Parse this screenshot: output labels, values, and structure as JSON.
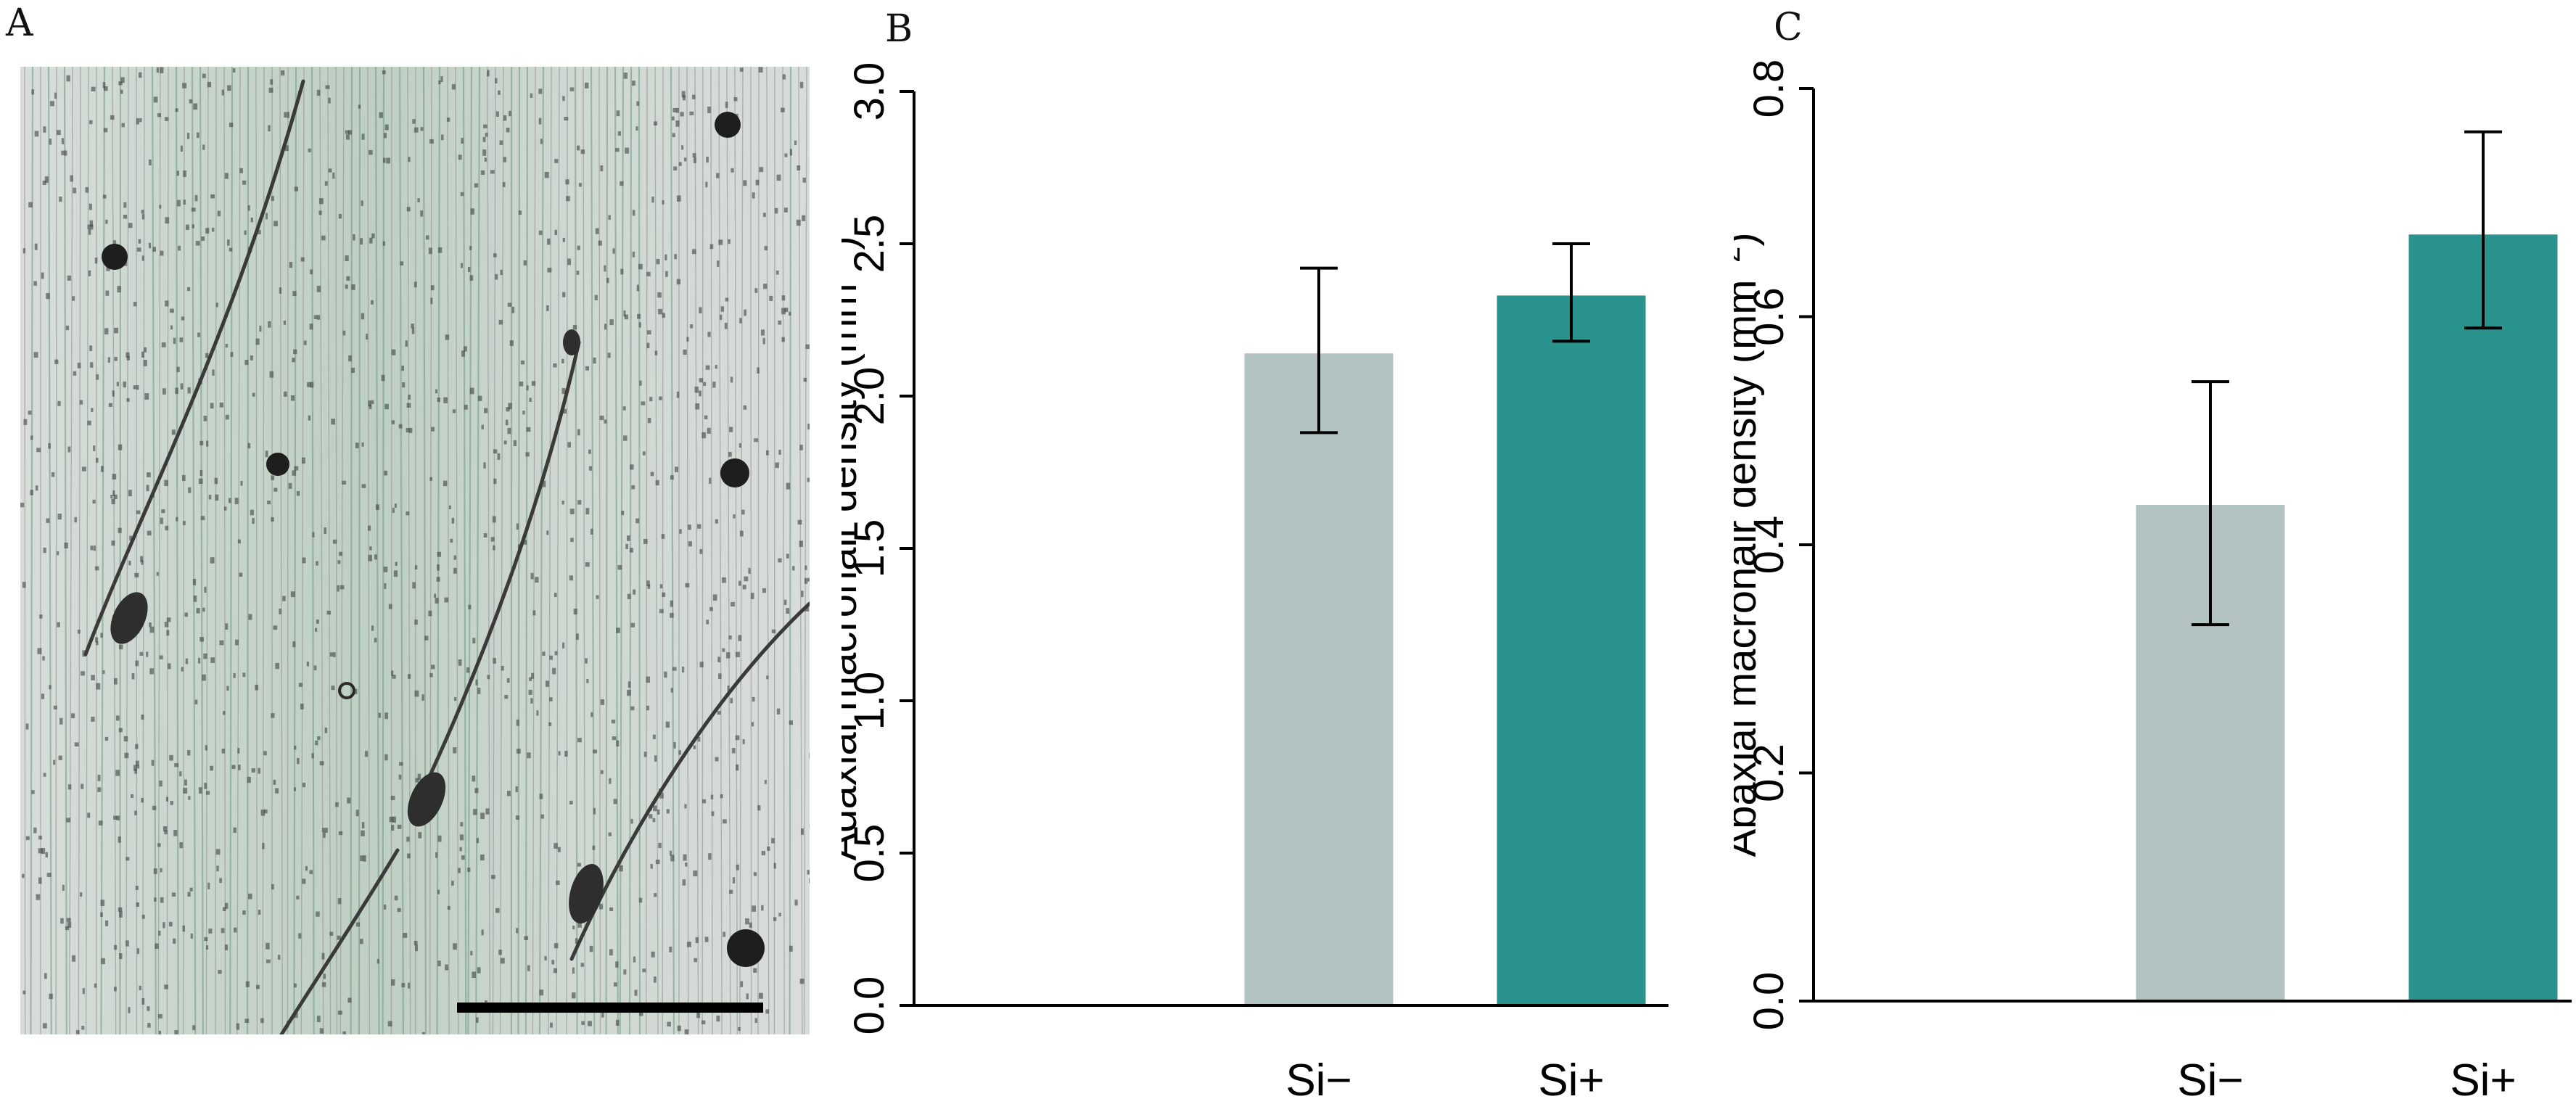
{
  "panels": {
    "a": {
      "letter": "A"
    },
    "b": {
      "letter": "B"
    },
    "c": {
      "letter": "C"
    }
  },
  "colors": {
    "si_minus": "#b2c3c2",
    "si_plus": "#2a938e",
    "axis": "#000000"
  },
  "chart_data": [
    {
      "type": "bar",
      "panel": "B",
      "categories": [
        "Si−",
        "Si+"
      ],
      "values": [
        2.14,
        2.33
      ],
      "error_low": [
        1.88,
        2.18
      ],
      "error_high": [
        2.42,
        2.5
      ],
      "ylabel": "Adaxial macrohair density (mm−2)",
      "ylabel_base": "Adaxial macrohair density (mm",
      "ylabel_sup": "−2",
      "ylabel_close": ")",
      "ylim": [
        0,
        3.0
      ],
      "yticks": [
        "0.0",
        "0.5",
        "1.0",
        "1.5",
        "2.0",
        "2.5",
        "3.0"
      ],
      "xlabel": "",
      "grid": false
    },
    {
      "type": "bar",
      "panel": "C",
      "categories": [
        "Si−",
        "Si+"
      ],
      "values": [
        0.435,
        0.672
      ],
      "error_low": [
        0.33,
        0.59
      ],
      "error_high": [
        0.543,
        0.762
      ],
      "ylabel": "Abaxial macrohair density (mm−2)",
      "ylabel_base": "Abaxial macrohair density (mm",
      "ylabel_sup": "−2",
      "ylabel_close": ")",
      "ylim": [
        0,
        0.8
      ],
      "yticks": [
        "0.0",
        "0.2",
        "0.4",
        "0.6",
        "0.8"
      ],
      "xlabel": "",
      "grid": false
    }
  ]
}
